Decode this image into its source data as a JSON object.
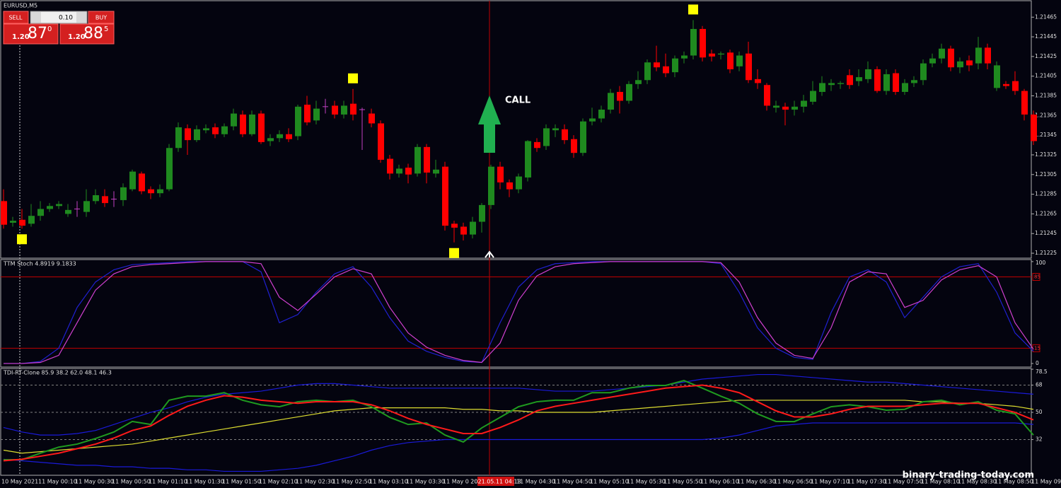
{
  "window": {
    "symbol": "EURUSD,M5"
  },
  "trade_panel": {
    "sell": "SELL",
    "lot": "0.10",
    "buy": "BUY",
    "bid_prefix": "1.20",
    "bid_big": "87",
    "bid_sup": "0",
    "ask_prefix": "1.20",
    "ask_big": "88",
    "ask_sup": "5"
  },
  "annotation": "CALL",
  "watermark": "binary-trading-today.com",
  "time_labels": [
    "10 May 2021",
    "11 May 00:10",
    "11 May 00:30",
    "11 May 00:50",
    "11 May 01:10",
    "11 May 01:30",
    "11 May 01:50",
    "11 May 02:10",
    "11 May 02:30",
    "11 May 02:50",
    "11 May 03:10",
    "11 May 03:30",
    "11 May 0",
    null,
    "11 May 04:30",
    "11 May 04:50",
    "11 May 05:10",
    "11 May 05:30",
    "11 May 05:50",
    "11 May 06:10",
    "11 May 06:30",
    "11 May 06:50",
    "11 May 07:10",
    "11 May 07:30",
    "11 May 07:50",
    "11 May 08:10",
    "11 May 08:30",
    "11 May 08:50",
    "11 May 09:"
  ],
  "crosshair_time": "2021.05.11 04:13",
  "chart_data": [
    {
      "type": "candlestick",
      "up_color": "#1f8a1f",
      "down_color": "#ff0000",
      "doji_color": "#c040c0",
      "signal_color": "#ffff00",
      "signals": {
        "above": [
          38,
          75
        ],
        "below": [
          2,
          49
        ]
      },
      "ylim": [
        1.2122,
        1.21481
      ],
      "yticks": [
        1.21225,
        1.21245,
        1.21265,
        1.21285,
        1.21305,
        1.21325,
        1.21345,
        1.21365,
        1.21385,
        1.21405,
        1.21425,
        1.21445,
        1.21465
      ],
      "open": [
        1.21278,
        1.21256,
        1.21259,
        1.21255,
        1.21263,
        1.2127,
        1.21273,
        1.21265,
        1.2127,
        1.21267,
        1.21278,
        1.21283,
        1.2128,
        1.21279,
        1.2129,
        1.21306,
        1.2129,
        1.21286,
        1.2129,
        1.21332,
        1.21352,
        1.2134,
        1.2135,
        1.21353,
        1.21346,
        1.21354,
        1.21366,
        1.21346,
        1.21367,
        1.21339,
        1.21342,
        1.21346,
        1.21344,
        1.21376,
        1.2136,
        1.21374,
        1.21375,
        1.21366,
        1.21377,
        1.21371,
        1.21367,
        1.21357,
        1.21321,
        1.21306,
        1.21312,
        1.21306,
        1.21333,
        1.21306,
        1.21313,
        1.21255,
        1.21252,
        1.21244,
        1.21257,
        1.21274,
        1.21313,
        1.21297,
        1.2129,
        1.21302,
        1.21338,
        1.21334,
        1.2135,
        1.21351,
        1.21341,
        1.21327,
        1.21359,
        1.21362,
        1.21371,
        1.21389,
        1.2138,
        1.21397,
        1.21401,
        1.21419,
        1.21415,
        1.21409,
        1.21423,
        1.21426,
        1.21453,
        1.21428,
        1.21427,
        1.21429,
        1.21415,
        1.21428,
        1.21402,
        1.21396,
        1.21373,
        1.21374,
        1.21371,
        1.21374,
        1.21379,
        1.21389,
        1.21396,
        1.21397,
        1.21406,
        1.214,
        1.21402,
        1.21412,
        1.2139,
        1.21408,
        1.21389,
        1.21398,
        1.21401,
        1.21418,
        1.21423,
        1.21433,
        1.21414,
        1.21421,
        1.21418,
        1.21434,
        1.21393,
        1.21397,
        1.214,
        1.2139,
        1.21366
      ],
      "high": [
        1.2129,
        1.21262,
        1.2127,
        1.21275,
        1.21278,
        1.21276,
        1.21278,
        1.21275,
        1.21278,
        1.2129,
        1.2129,
        1.2129,
        1.21288,
        1.21296,
        1.2131,
        1.21308,
        1.21293,
        1.21295,
        1.21336,
        1.21358,
        1.21356,
        1.21355,
        1.21356,
        1.21357,
        1.21357,
        1.21372,
        1.2137,
        1.2137,
        1.2137,
        1.21346,
        1.2135,
        1.21352,
        1.21376,
        1.21385,
        1.2138,
        1.21382,
        1.2138,
        1.2138,
        1.21392,
        1.21373,
        1.21372,
        1.2136,
        1.21325,
        1.21315,
        1.21316,
        1.21336,
        1.21336,
        1.2132,
        1.21318,
        1.21258,
        1.21256,
        1.21262,
        1.21276,
        1.21315,
        1.21318,
        1.213,
        1.21306,
        1.2134,
        1.21342,
        1.21356,
        1.21356,
        1.21356,
        1.21345,
        1.21362,
        1.21373,
        1.21375,
        1.21392,
        1.21395,
        1.214,
        1.2141,
        1.21422,
        1.21436,
        1.21428,
        1.21426,
        1.2143,
        1.21462,
        1.21456,
        1.21432,
        1.2143,
        1.21432,
        1.2143,
        1.2144,
        1.21412,
        1.21398,
        1.2138,
        1.21378,
        1.2138,
        1.21386,
        1.214,
        1.21405,
        1.21402,
        1.214,
        1.21412,
        1.21412,
        1.2142,
        1.21415,
        1.21412,
        1.21412,
        1.21402,
        1.21405,
        1.21422,
        1.21428,
        1.21438,
        1.21436,
        1.21424,
        1.21426,
        1.21445,
        1.21438,
        1.2142,
        1.214,
        1.2141,
        1.21392,
        1.2137
      ],
      "low": [
        1.2125,
        1.21252,
        1.2125,
        1.21252,
        1.21258,
        1.21267,
        1.2127,
        1.21262,
        1.21262,
        1.21262,
        1.21275,
        1.21272,
        1.21272,
        1.21273,
        1.21288,
        1.21285,
        1.2128,
        1.21282,
        1.21288,
        1.21328,
        1.21325,
        1.21338,
        1.21347,
        1.21342,
        1.21343,
        1.2135,
        1.21343,
        1.21344,
        1.21336,
        1.21334,
        1.21338,
        1.21338,
        1.2134,
        1.21355,
        1.21356,
        1.21367,
        1.21362,
        1.21362,
        1.2136,
        1.2133,
        1.21353,
        1.21317,
        1.213,
        1.21302,
        1.21296,
        1.21303,
        1.21296,
        1.21302,
        1.21248,
        1.21236,
        1.21238,
        1.2124,
        1.21246,
        1.2127,
        1.2129,
        1.21282,
        1.21286,
        1.21298,
        1.21328,
        1.2133,
        1.21343,
        1.21336,
        1.21322,
        1.21324,
        1.21355,
        1.21358,
        1.21367,
        1.21367,
        1.21377,
        1.21392,
        1.21397,
        1.2141,
        1.21404,
        1.21404,
        1.21418,
        1.21422,
        1.2142,
        1.2142,
        1.21422,
        1.21408,
        1.2141,
        1.21398,
        1.21392,
        1.2137,
        1.21368,
        1.21355,
        1.21365,
        1.21368,
        1.21376,
        1.21385,
        1.2139,
        1.21392,
        1.21392,
        1.21395,
        1.21398,
        1.21388,
        1.21386,
        1.21386,
        1.21386,
        1.21394,
        1.21396,
        1.21414,
        1.21418,
        1.2141,
        1.21408,
        1.2141,
        1.21412,
        1.21412,
        1.2139,
        1.21392,
        1.21386,
        1.2136,
        1.21335
      ],
      "close": [
        1.21254,
        1.21258,
        1.21253,
        1.21263,
        1.2127,
        1.21273,
        1.21275,
        1.21269,
        1.2127,
        1.21278,
        1.21284,
        1.21276,
        1.2128,
        1.21292,
        1.21308,
        1.21288,
        1.21286,
        1.2129,
        1.21332,
        1.21353,
        1.2134,
        1.21351,
        1.21352,
        1.21346,
        1.21354,
        1.21367,
        1.21346,
        1.21366,
        1.21338,
        1.21342,
        1.21346,
        1.21341,
        1.21374,
        1.21358,
        1.21372,
        1.21374,
        1.21366,
        1.21375,
        1.21366,
        1.21371,
        1.21357,
        1.2132,
        1.21306,
        1.21311,
        1.21305,
        1.21333,
        1.21307,
        1.2131,
        1.21253,
        1.21251,
        1.21244,
        1.21257,
        1.21274,
        1.21313,
        1.21297,
        1.2129,
        1.21303,
        1.21339,
        1.21332,
        1.21352,
        1.21352,
        1.2134,
        1.21327,
        1.21359,
        1.21362,
        1.21371,
        1.21388,
        1.2138,
        1.21397,
        1.21401,
        1.21419,
        1.21414,
        1.21408,
        1.21423,
        1.21426,
        1.21453,
        1.21424,
        1.21425,
        1.21428,
        1.21412,
        1.21426,
        1.21401,
        1.21398,
        1.21375,
        1.21375,
        1.21371,
        1.21374,
        1.2138,
        1.2139,
        1.21398,
        1.21398,
        1.21398,
        1.21396,
        1.21404,
        1.21412,
        1.2139,
        1.21407,
        1.21389,
        1.21398,
        1.21401,
        1.21418,
        1.21423,
        1.21433,
        1.21414,
        1.2142,
        1.21416,
        1.21434,
        1.21418,
        1.21416,
        1.21395,
        1.2139,
        1.21366,
        1.21339
      ]
    },
    {
      "type": "line",
      "title": "TTM Stoch 4.8919 9.1833",
      "ylim": [
        -3.5,
        102
      ],
      "yticks": [
        0,
        100
      ],
      "levels": [
        15,
        85
      ],
      "level_color": "#c00000",
      "series": [
        {
          "color": "#2020d0",
          "values": [
            0,
            0,
            2,
            15,
            55,
            80,
            92,
            97,
            98,
            99,
            100,
            100,
            100,
            100,
            90,
            40,
            48,
            70,
            88,
            95,
            75,
            45,
            22,
            12,
            6,
            2,
            1,
            40,
            75,
            92,
            98,
            99,
            100,
            100,
            100,
            100,
            100,
            100,
            100,
            98,
            70,
            35,
            15,
            6,
            4,
            50,
            85,
            92,
            80,
            45,
            65,
            85,
            95,
            98,
            70,
            30,
            12
          ]
        },
        {
          "color": "#d040d0",
          "values": [
            0,
            0,
            1,
            8,
            40,
            72,
            88,
            95,
            97,
            98,
            99,
            100,
            100,
            100,
            98,
            65,
            52,
            68,
            85,
            93,
            88,
            55,
            30,
            16,
            8,
            3,
            1,
            20,
            62,
            86,
            95,
            98,
            99,
            100,
            100,
            100,
            100,
            100,
            100,
            99,
            80,
            45,
            20,
            8,
            5,
            35,
            80,
            90,
            88,
            55,
            62,
            82,
            92,
            96,
            85,
            40,
            14
          ]
        }
      ]
    },
    {
      "type": "line",
      "title": "TDI-RT-Clone 85.9 38.2 62.0 48.1 46.3",
      "ylim": [
        8.4,
        79
      ],
      "yticks": [
        32,
        50,
        68,
        78.5
      ],
      "levels": [
        32,
        50,
        68
      ],
      "level_color": "#808080",
      "series": [
        {
          "color": "#1a1ad8",
          "values": [
            40,
            37,
            35,
            35,
            36,
            38,
            42,
            46,
            50,
            53,
            57,
            60,
            62,
            63,
            64,
            66,
            68,
            69,
            69,
            68,
            67,
            66,
            66,
            66,
            66,
            66,
            66,
            66,
            66,
            65,
            64,
            64,
            64,
            65,
            66,
            67,
            68,
            70,
            72,
            73,
            74,
            75,
            75,
            74,
            73,
            72,
            71,
            70,
            70,
            69,
            68,
            67,
            66,
            65,
            64,
            63,
            62
          ]
        },
        {
          "color": "#1a1ad8",
          "values": [
            19,
            18,
            17,
            16,
            15,
            15,
            14,
            14,
            13,
            13,
            12,
            12,
            11,
            11,
            11,
            12,
            13,
            15,
            18,
            21,
            25,
            28,
            30,
            31,
            32,
            32,
            32,
            32,
            32,
            32,
            32,
            32,
            32,
            32,
            32,
            32,
            32,
            32,
            32,
            33,
            35,
            38,
            41,
            42,
            43,
            43,
            43,
            43,
            43,
            43,
            43,
            43,
            43,
            43,
            43,
            43,
            42
          ]
        },
        {
          "color": "#dddd30",
          "values": [
            25,
            23,
            24,
            25,
            26,
            27,
            28,
            29,
            31,
            33,
            35,
            37,
            39,
            41,
            43,
            45,
            47,
            49,
            51,
            52,
            53,
            53,
            53,
            53,
            53,
            52,
            52,
            51,
            51,
            50,
            50,
            50,
            50,
            51,
            52,
            53,
            54,
            55,
            56,
            57,
            58,
            58,
            58,
            58,
            58,
            58,
            58,
            58,
            58,
            58,
            57,
            57,
            56,
            56,
            55,
            54,
            52
          ]
        },
        {
          "color": "#1f9a1f",
          "values": [
            18.7,
            18.7,
            23,
            27,
            29,
            32.7,
            37,
            44,
            42,
            58,
            60.7,
            60.7,
            63,
            58,
            55,
            53.7,
            57,
            58,
            57,
            58,
            53.7,
            46.7,
            42,
            43,
            35,
            30.4,
            39.7,
            46.7,
            53.7,
            57,
            58,
            58,
            63,
            63,
            66,
            67.8,
            67.8,
            71,
            66,
            60.7,
            56,
            49,
            44,
            43.9,
            49,
            53.7,
            55,
            53.7,
            51.4,
            52,
            57,
            58,
            55,
            57,
            51.4,
            49,
            35
          ]
        },
        {
          "color": "#ff1a1a",
          "values": [
            18,
            19,
            21,
            23,
            26,
            29,
            33,
            38,
            41,
            48,
            54,
            58,
            61,
            60,
            58,
            57,
            56,
            57,
            57,
            57,
            55,
            51,
            46,
            42,
            39,
            36,
            36,
            40,
            45,
            51,
            54,
            56,
            58,
            60,
            62,
            64,
            66,
            67,
            68,
            66,
            63,
            57,
            51,
            47,
            47,
            49,
            52,
            54,
            54,
            54,
            55,
            56,
            56,
            56,
            53,
            50,
            45
          ]
        }
      ]
    }
  ]
}
